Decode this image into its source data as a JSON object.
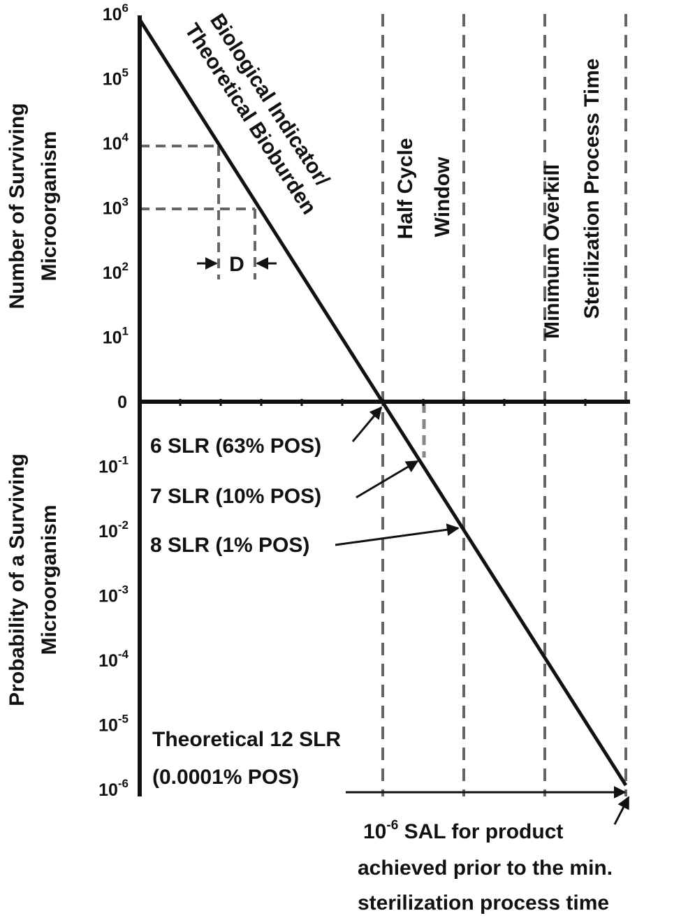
{
  "chart_data": {
    "type": "line",
    "upper_axis": {
      "label_lines": [
        "Number of Surviving",
        "Microorganism"
      ],
      "ticks": [
        {
          "base": "10",
          "exp": "6",
          "value": 1000000
        },
        {
          "base": "10",
          "exp": "5",
          "value": 100000
        },
        {
          "base": "10",
          "exp": "4",
          "value": 10000
        },
        {
          "base": "10",
          "exp": "3",
          "value": 1000
        },
        {
          "base": "10",
          "exp": "2",
          "value": 100
        },
        {
          "base": "10",
          "exp": "1",
          "value": 10
        },
        {
          "base": "0",
          "exp": "",
          "value": 0
        }
      ]
    },
    "lower_axis": {
      "label_lines": [
        "Probability of a Surviving",
        "Microorganism"
      ],
      "ticks": [
        {
          "base": "10",
          "exp": "-1",
          "value": 0.1
        },
        {
          "base": "10",
          "exp": "-2",
          "value": 0.01
        },
        {
          "base": "10",
          "exp": "-3",
          "value": 0.001
        },
        {
          "base": "10",
          "exp": "-4",
          "value": 0.0001
        },
        {
          "base": "10",
          "exp": "-5",
          "value": 1e-05
        },
        {
          "base": "10",
          "exp": "-6",
          "value": 1e-06
        }
      ]
    },
    "series": [
      {
        "name": "Biological Indicator/ Theoretical Bioburden",
        "points": [
          {
            "x": 0,
            "log10": 6
          },
          {
            "x": 6,
            "log10": 0
          },
          {
            "x": 12,
            "log10": -6
          }
        ]
      }
    ],
    "line_label_lines": [
      "Biological Indicator/",
      "Theoretical Bioburden"
    ],
    "d_value_label": "D",
    "vertical_markers": [
      {
        "id": "half-cycle-start",
        "x": 6,
        "label_lines": [
          "Half Cycle",
          "Window"
        ]
      },
      {
        "id": "half-cycle-end",
        "x": 8,
        "label_lines": []
      },
      {
        "id": "min-overkill",
        "x": 10,
        "label_lines": [
          "Minimum Overkill",
          "Sterilization Process Time"
        ]
      },
      {
        "id": "process-time",
        "x": 12,
        "label_lines": []
      }
    ],
    "annotations": [
      {
        "id": "slr6",
        "text": "6 SLR (63% POS)",
        "x": 6,
        "log10": 0
      },
      {
        "id": "slr7",
        "text": "7 SLR (10% POS)",
        "x": 7,
        "log10": -1
      },
      {
        "id": "slr8",
        "text": "8 SLR (1% POS)",
        "x": 8,
        "log10": -2
      },
      {
        "id": "slr12",
        "text_lines": [
          "Theoretical 12 SLR",
          "(0.0001% POS)"
        ],
        "x": 12,
        "log10": -6
      },
      {
        "id": "sal",
        "text_lines": [
          "10^-6 SAL for product",
          "achieved prior to the min.",
          "sterilization process time"
        ],
        "sup": "-6",
        "x": 12,
        "log10": -6
      }
    ]
  },
  "sal_parts": {
    "line1_prefix": "10",
    "line1_sup": "-6",
    "line1_suffix": " SAL for product",
    "line2": "achieved prior to the min.",
    "line3": "sterilization process time"
  }
}
